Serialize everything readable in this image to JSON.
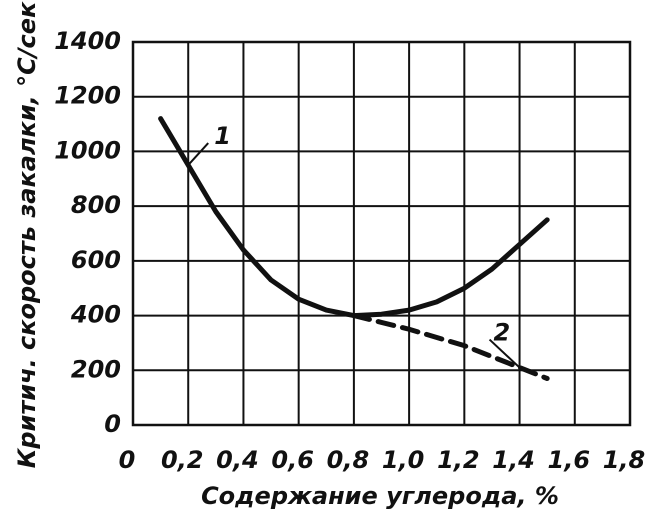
{
  "chart_data": {
    "type": "line",
    "xlabel": "Содержание углерода, %",
    "ylabel": "Критич. скорость закалки, °С/сек",
    "xlim": [
      0,
      1.8
    ],
    "xticks": [
      0,
      {
        "value": 0.2,
        "label": "0,2"
      },
      {
        "value": 0.4,
        "label": "0,4"
      },
      {
        "value": 0.6,
        "label": "0,6"
      },
      {
        "value": 0.8,
        "label": "0,8"
      },
      {
        "value": 1.0,
        "label": "1,0"
      },
      {
        "value": 1.2,
        "label": "1,2"
      },
      {
        "value": 1.4,
        "label": "1,4"
      },
      {
        "value": 1.6,
        "label": "1,6"
      },
      {
        "value": 1.8,
        "label": "1,8"
      }
    ],
    "ylim": [
      0,
      1400
    ],
    "yticks": [
      0,
      200,
      400,
      600,
      800,
      1000,
      1200,
      1400
    ],
    "grid": true,
    "series": [
      {
        "name": "1",
        "color": "#111111",
        "dashed": false,
        "x": [
          0.1,
          0.2,
          0.3,
          0.4,
          0.5,
          0.6,
          0.7,
          0.8,
          0.9,
          1.0,
          1.1,
          1.2,
          1.3,
          1.4,
          1.5
        ],
        "values": [
          1120,
          950,
          780,
          640,
          530,
          460,
          420,
          400,
          405,
          420,
          450,
          500,
          570,
          660,
          750
        ]
      },
      {
        "name": "2",
        "color": "#111111",
        "dashed": true,
        "x": [
          0.8,
          1.0,
          1.2,
          1.4,
          1.5
        ],
        "values": [
          400,
          350,
          290,
          210,
          170
        ]
      }
    ]
  }
}
